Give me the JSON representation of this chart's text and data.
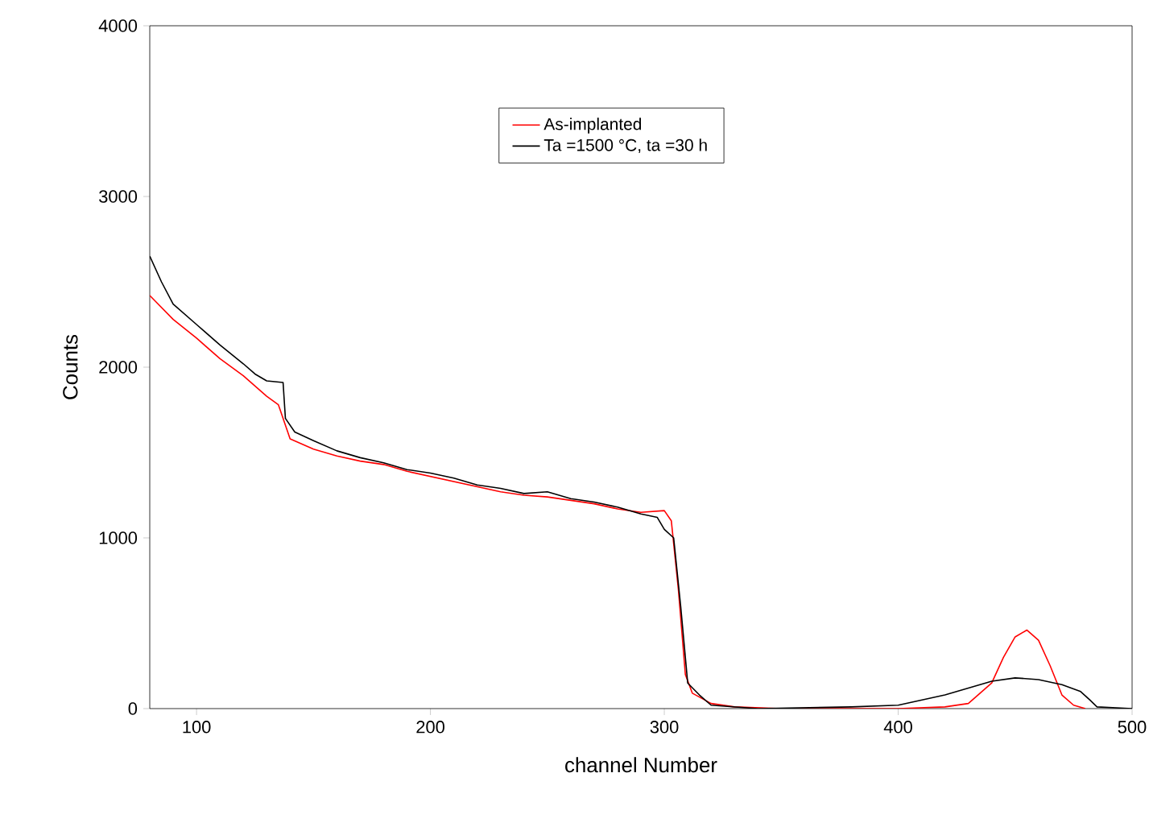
{
  "chart_data": {
    "type": "line",
    "xlabel": "channel Number",
    "ylabel": "Counts",
    "xlim": [
      80,
      500
    ],
    "ylim": [
      0,
      4000
    ],
    "xticks": [
      100,
      200,
      300,
      400,
      500
    ],
    "yticks": [
      0,
      1000,
      2000,
      3000,
      4000
    ],
    "grid": false,
    "legend": "top",
    "marker": "none",
    "line_style": "solid",
    "series": [
      {
        "name": "As-implanted",
        "color": "#ff0000",
        "x": [
          80,
          90,
          100,
          110,
          120,
          130,
          135,
          140,
          150,
          160,
          170,
          180,
          190,
          200,
          210,
          220,
          230,
          240,
          250,
          260,
          270,
          280,
          290,
          300,
          303,
          306,
          309,
          312,
          320,
          330,
          350,
          400,
          420,
          430,
          440,
          445,
          450,
          455,
          460,
          465,
          470,
          475,
          480
        ],
        "values": [
          2420,
          2280,
          2170,
          2050,
          1950,
          1830,
          1780,
          1580,
          1520,
          1480,
          1450,
          1430,
          1390,
          1360,
          1330,
          1300,
          1270,
          1250,
          1240,
          1220,
          1200,
          1170,
          1150,
          1160,
          1100,
          700,
          200,
          90,
          30,
          10,
          0,
          0,
          10,
          30,
          150,
          300,
          420,
          460,
          400,
          250,
          80,
          20,
          0
        ]
      },
      {
        "name": "Ta =1500 °C, ta =30 h",
        "color": "#000000",
        "x": [
          80,
          85,
          90,
          100,
          110,
          120,
          125,
          130,
          137,
          138,
          142,
          150,
          160,
          170,
          180,
          190,
          200,
          210,
          220,
          230,
          240,
          250,
          260,
          270,
          280,
          290,
          297,
          300,
          304,
          307,
          310,
          315,
          320,
          340,
          380,
          400,
          410,
          420,
          430,
          440,
          450,
          460,
          470,
          478,
          482,
          485,
          500
        ],
        "values": [
          2650,
          2500,
          2370,
          2250,
          2130,
          2020,
          1960,
          1920,
          1910,
          1700,
          1620,
          1570,
          1510,
          1470,
          1440,
          1400,
          1380,
          1350,
          1310,
          1290,
          1260,
          1270,
          1230,
          1210,
          1180,
          1140,
          1120,
          1050,
          1000,
          600,
          150,
          80,
          20,
          0,
          10,
          20,
          50,
          80,
          120,
          160,
          180,
          170,
          140,
          100,
          50,
          10,
          0
        ]
      }
    ]
  }
}
